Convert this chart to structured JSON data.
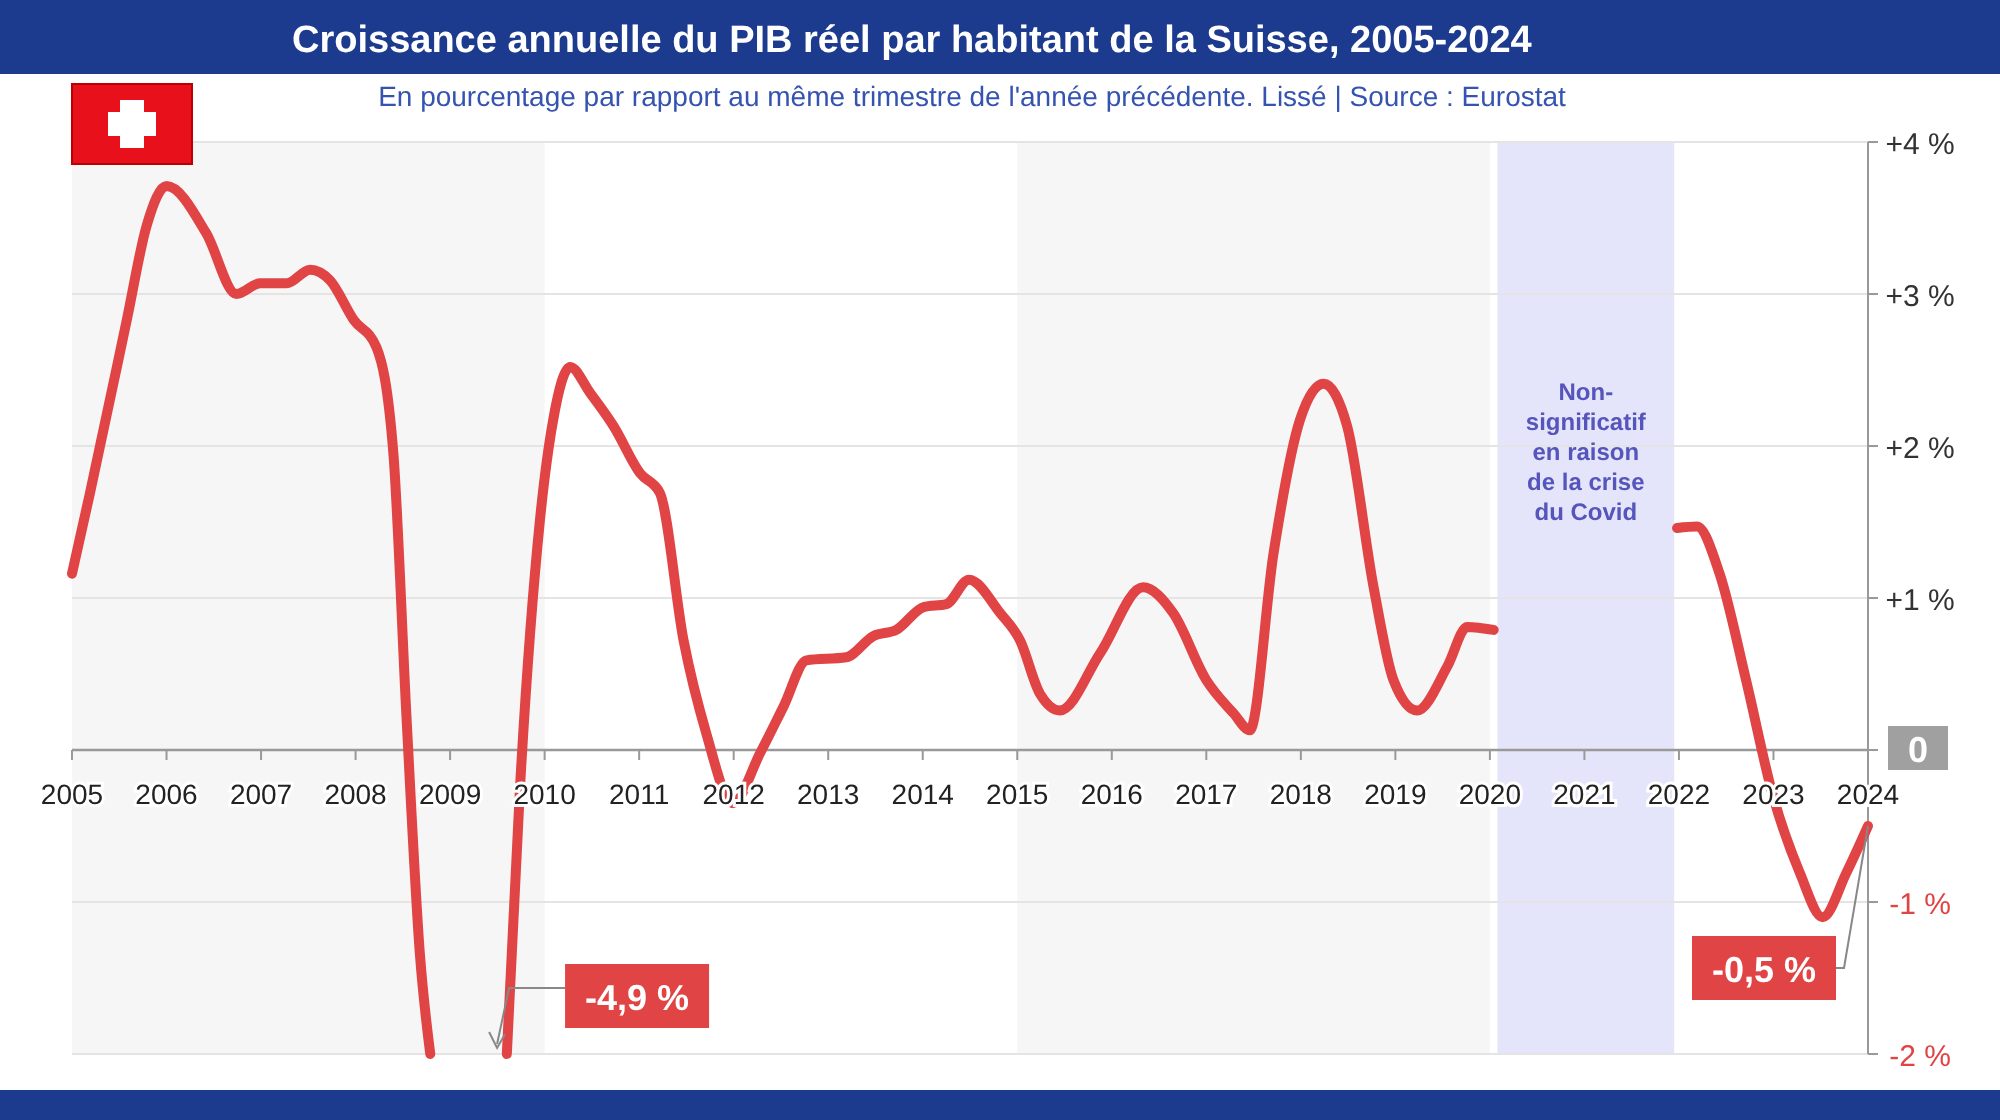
{
  "chart_data": {
    "type": "line",
    "title": "Croissance annuelle du PIB réel par habitant de la Suisse, 2005-2024",
    "subtitle": "En pourcentage par rapport au même trimestre de l'année précédente. Lissé  |  Source : Eurostat",
    "annotations": [
      "-4,9 %",
      {
        "text": "-0,5 %",
        "x": 2024,
        "y": -0.5
      }
    ],
    "series": [
      {
        "color": "#e04444",
        "x": [
          2005.0,
          2005.19,
          2005.58,
          2005.79,
          2006.0,
          2006.42,
          2006.74,
          2006.99,
          2007.27,
          2007.52,
          2007.73,
          2007.98,
          2008.22,
          2008.4,
          2008.54,
          2008.68,
          2008.79,
          2009.2,
          2009.6,
          2009.74,
          2009.95,
          2010.09,
          2010.27,
          2010.48,
          2010.73,
          2011.01,
          2011.22,
          2011.47,
          2011.71,
          2011.99,
          2012.28,
          2012.53,
          2012.77,
          2013.19,
          2013.48,
          2013.72,
          2014.01,
          2014.25,
          2014.49,
          2014.82,
          2015.03,
          2015.24,
          2015.45,
          2015.88,
          2016.33,
          2016.65,
          2017.0,
          2017.29,
          2017.46,
          2017.71,
          2017.99,
          2018.24,
          2018.49,
          2018.77,
          2018.98,
          2019.23,
          2019.55,
          2019.76,
          2020.04,
          2021.0,
          2021.98,
          2022.19,
          2022.43,
          2022.71,
          2022.99,
          2023.28,
          2023.52,
          2023.77,
          2024.0
        ],
        "values": [
          1.16,
          1.69,
          2.83,
          3.45,
          3.71,
          3.4,
          3.0,
          3.07,
          3.07,
          3.16,
          3.09,
          2.83,
          2.65,
          1.95,
          0.2,
          -1.34,
          -2.0,
          null,
          -2.0,
          -0.24,
          1.51,
          2.17,
          2.52,
          2.35,
          2.13,
          1.82,
          1.69,
          0.72,
          0.11,
          -0.35,
          -0.02,
          0.29,
          0.59,
          0.61,
          0.75,
          0.79,
          0.94,
          0.96,
          1.12,
          0.9,
          0.72,
          0.37,
          0.26,
          0.64,
          1.07,
          0.9,
          0.46,
          0.24,
          0.13,
          1.29,
          2.17,
          2.41,
          2.13,
          1.07,
          0.46,
          0.26,
          0.55,
          0.81,
          0.79,
          null,
          1.46,
          1.47,
          1.16,
          0.46,
          -0.29,
          -0.81,
          -1.1,
          -0.81,
          -0.5
        ]
      }
    ],
    "xlim": [
      2005,
      2024
    ],
    "xticks": [
      2005,
      2006,
      2007,
      2008,
      2009,
      2010,
      2011,
      2012,
      2013,
      2014,
      2015,
      2016,
      2017,
      2018,
      2019,
      2020,
      2021,
      2022,
      2023,
      2024
    ],
    "ylim": [
      -2,
      4
    ],
    "yticks": [
      {
        "value": 4,
        "label": "+4 %"
      },
      {
        "value": 3,
        "label": "+3 %"
      },
      {
        "value": 2,
        "label": "+2 %"
      },
      {
        "value": 1,
        "label": "+1 %"
      },
      0,
      {
        "value": -1,
        "label": "-1 %"
      },
      {
        "value": -2,
        "label": "-2 %"
      }
    ],
    "grid": "y",
    "line_style": "solid",
    "marker": "none",
    "bands": [
      {
        "axis": "x",
        "from": 2005,
        "to": 2010,
        "label": null,
        "color": "#f6f6f6"
      },
      {
        "axis": "x",
        "from": 2015,
        "to": 2020,
        "label": null,
        "color": "#f6f6f6"
      },
      {
        "axis": "x",
        "from": 2020.08,
        "to": 2021.95,
        "label": "Non-\nsignificatif\nen raison\nde la crise\ndu Covid",
        "color": "#e4e4fb"
      }
    ]
  }
}
